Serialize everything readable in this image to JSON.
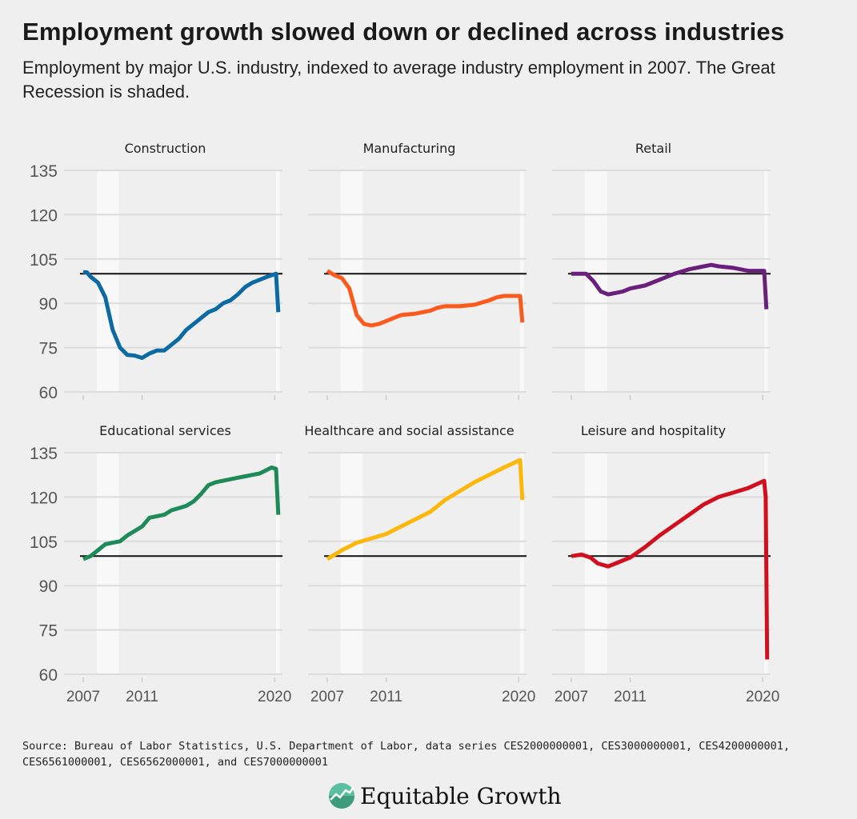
{
  "title": "Employment growth slowed down or declined across industries",
  "subtitle": "Employment by major U.S. industry, indexed to average industry employment in 2007. The Great Recession is shaded.",
  "source": "Source: Bureau of Labor Statistics, U.S. Department of Labor, data series CES2000000001, CES3000000001, CES4200000001, CES6561000001, CES6562000001, and CES7000000001",
  "logo_text": "Equitable Growth",
  "colors": {
    "background": "#efefef",
    "shade": "#f8f8f8",
    "reference_line": "#111111"
  },
  "chart_data": {
    "type": "line",
    "layout": "small multiples 3x2",
    "ylim": [
      60,
      135
    ],
    "yticks": [
      60,
      75,
      90,
      105,
      120,
      135
    ],
    "xlim": [
      2007,
      2020.3
    ],
    "xticks": [
      2007,
      2011,
      2020
    ],
    "xtick_labels": [
      "2007",
      "2011",
      "2020"
    ],
    "reference_line": 100,
    "shaded_periods": [
      [
        2007.92,
        2009.42
      ],
      [
        2020.1,
        2020.35
      ]
    ],
    "grid": true,
    "panels": [
      {
        "name": "Construction",
        "color": "#0b6aa2",
        "x": [
          2007,
          2007.25,
          2007.5,
          2008,
          2008.5,
          2009,
          2009.5,
          2010,
          2010.5,
          2011,
          2011.5,
          2012,
          2012.5,
          2013,
          2013.5,
          2014,
          2014.5,
          2015,
          2015.5,
          2016,
          2016.5,
          2017,
          2017.5,
          2018,
          2018.5,
          2019,
          2019.5,
          2020.1,
          2020.25
        ],
        "y": [
          100.5,
          100.5,
          99,
          97,
          92,
          81,
          75,
          72.5,
          72.3,
          71.5,
          73,
          74,
          74,
          76,
          78,
          81,
          83,
          85,
          87,
          88,
          90,
          91,
          93,
          95.5,
          97,
          98,
          99,
          100,
          87
        ]
      },
      {
        "name": "Manufacturing",
        "color": "#fb5a1d",
        "x": [
          2007,
          2007.5,
          2008,
          2008.5,
          2009,
          2009.5,
          2010,
          2010.5,
          2011,
          2011.5,
          2012,
          2013,
          2014,
          2014.5,
          2015,
          2016,
          2017,
          2018,
          2018.5,
          2019,
          2020.1,
          2020.25
        ],
        "y": [
          101,
          99.5,
          98.5,
          95,
          86,
          83,
          82.5,
          83,
          84,
          85,
          86,
          86.5,
          87.5,
          88.5,
          89,
          89,
          89.5,
          91,
          92,
          92.5,
          92.5,
          83.5
        ]
      },
      {
        "name": "Retail",
        "color": "#6b1f7c",
        "x": [
          2007,
          2007.5,
          2008,
          2008.5,
          2009,
          2009.5,
          2010,
          2010.5,
          2011,
          2012,
          2013,
          2014,
          2015,
          2016,
          2016.5,
          2017,
          2018,
          2019,
          2020.1,
          2020.25
        ],
        "y": [
          100,
          100,
          100,
          97.5,
          94,
          93,
          93.5,
          94,
          95,
          96,
          98,
          100,
          101.5,
          102.5,
          103,
          102.5,
          102,
          101,
          101,
          88
        ]
      },
      {
        "name": "Educational services",
        "color": "#1e8a57",
        "x": [
          2007,
          2007.5,
          2008,
          2008.5,
          2009,
          2009.5,
          2010,
          2010.5,
          2011,
          2011.5,
          2012,
          2012.5,
          2013,
          2014,
          2014.5,
          2015,
          2015.5,
          2016,
          2017,
          2018,
          2019,
          2019.8,
          2020.1,
          2020.25
        ],
        "y": [
          99,
          100,
          102,
          104,
          104.5,
          105,
          107,
          108.5,
          110,
          113,
          113.5,
          114,
          115.5,
          117,
          118.5,
          121,
          124,
          125,
          126,
          127,
          128,
          130,
          129.5,
          114
        ]
      },
      {
        "name": "Healthcare and social assistance",
        "color": "#fbb70a",
        "x": [
          2007,
          2008,
          2009,
          2010,
          2011,
          2012,
          2013,
          2014,
          2015,
          2016,
          2017,
          2018,
          2019,
          2020.1,
          2020.25
        ],
        "y": [
          99,
          102,
          104.5,
          106,
          107.5,
          110,
          112.5,
          115,
          119,
          122,
          125,
          127.5,
          130,
          132.5,
          119
        ]
      },
      {
        "name": "Leisure and hospitality",
        "color": "#d0101f",
        "x": [
          2007,
          2007.7,
          2008.3,
          2008.8,
          2009.5,
          2010,
          2011,
          2012,
          2013,
          2014,
          2015,
          2016,
          2017,
          2018,
          2019,
          2020.1,
          2020.2,
          2020.3
        ],
        "y": [
          100,
          100.5,
          99.5,
          97.5,
          96.5,
          97.5,
          99.5,
          103,
          107,
          110.5,
          114,
          117.5,
          120,
          121.5,
          123,
          125.5,
          120,
          65
        ]
      }
    ]
  }
}
